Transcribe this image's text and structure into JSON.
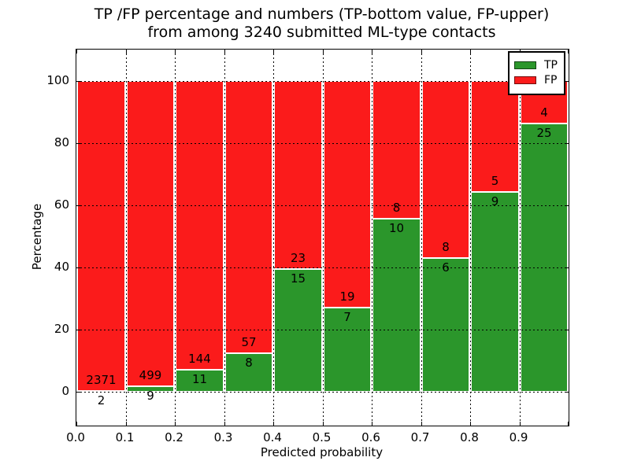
{
  "chart_data": {
    "type": "bar",
    "stacked": true,
    "normalized_to_percent": true,
    "title_line1": "TP /FP percentage and numbers (TP-bottom value, FP-upper)",
    "title_line2": "from among 3240 submitted ML-type contacts",
    "total_contacts": 3240,
    "xlabel": "Predicted probability",
    "ylabel": "Percentage",
    "xlim": [
      0.0,
      1.0
    ],
    "ylim": [
      -11,
      110
    ],
    "bin_width": 0.1,
    "grid": "dotted",
    "categories": [
      "0.0-0.1",
      "0.1-0.2",
      "0.2-0.3",
      "0.3-0.4",
      "0.4-0.5",
      "0.5-0.6",
      "0.6-0.7",
      "0.7-0.8",
      "0.8-0.9",
      "0.9-1.0"
    ],
    "series": [
      {
        "name": "TP",
        "color": "#2b962b",
        "counts": [
          2,
          9,
          11,
          8,
          15,
          7,
          10,
          6,
          9,
          25
        ]
      },
      {
        "name": "FP",
        "color": "#fb1b1b",
        "counts": [
          2371,
          499,
          144,
          57,
          23,
          19,
          8,
          8,
          5,
          4
        ]
      }
    ],
    "tp_percent": [
      0.08,
      1.77,
      7.1,
      12.31,
      39.47,
      26.92,
      55.56,
      42.86,
      64.29,
      86.21
    ],
    "x_tick_labels": [
      "0.0",
      "0.1",
      "0.2",
      "0.3",
      "0.4",
      "0.5",
      "0.6",
      "0.7",
      "0.8",
      "0.9"
    ],
    "y_tick_values": [
      0,
      20,
      40,
      60,
      80,
      100
    ],
    "y_tick_labels": [
      "0",
      "20",
      "40",
      "60",
      "80",
      "100"
    ],
    "legend": {
      "position": "upper right",
      "entries": [
        {
          "label": "TP",
          "color": "#2b962b"
        },
        {
          "label": "FP",
          "color": "#fb1b1b"
        }
      ]
    }
  }
}
